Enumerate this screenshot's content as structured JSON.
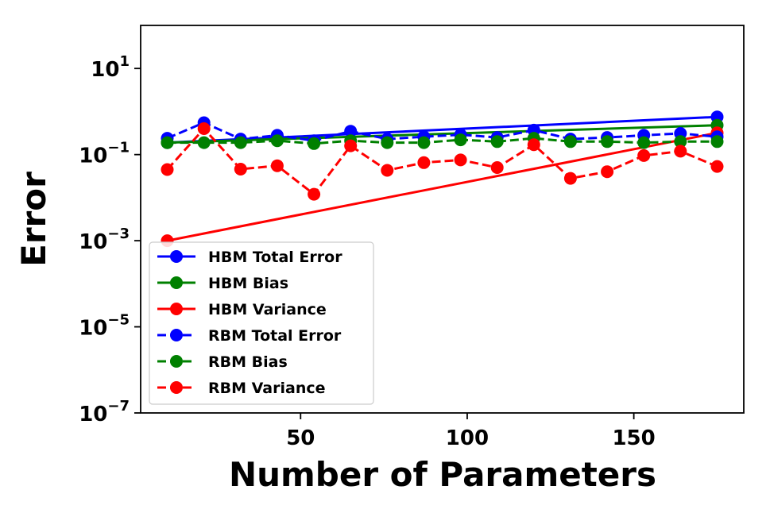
{
  "chart_data": {
    "type": "line",
    "xlabel": "Number of Parameters",
    "ylabel": "Error",
    "xlim": [
      2,
      183
    ],
    "ylim": [
      1e-07,
      100
    ],
    "yscale": "log",
    "xticks": [
      50,
      100,
      150
    ],
    "yticks": [
      {
        "base": "10",
        "exp": "1",
        "value": 10
      },
      {
        "base": "10",
        "exp": "−1",
        "value": 0.1
      },
      {
        "base": "10",
        "exp": "−3",
        "value": 0.001
      },
      {
        "base": "10",
        "exp": "−5",
        "value": 1e-05
      },
      {
        "base": "10",
        "exp": "−7",
        "value": 1e-07
      }
    ],
    "grid": false,
    "legend_position": "lower-left",
    "series": [
      {
        "name": "HBM Total Error",
        "color": "#0000ff",
        "linestyle": "solid",
        "x": [
          10,
          175
        ],
        "y": [
          0.19,
          0.75
        ]
      },
      {
        "name": "HBM Bias",
        "color": "#008000",
        "linestyle": "solid",
        "x": [
          10,
          175
        ],
        "y": [
          0.19,
          0.48
        ]
      },
      {
        "name": "HBM Variance",
        "color": "#ff0000",
        "linestyle": "solid",
        "x": [
          10,
          175
        ],
        "y": [
          0.001,
          0.32
        ]
      },
      {
        "name": "RBM Total Error",
        "color": "#0000ff",
        "linestyle": "dashed",
        "x": [
          10,
          21,
          32,
          43,
          54,
          65,
          76,
          87,
          98,
          109,
          120,
          131,
          142,
          153,
          164,
          175
        ],
        "y": [
          0.24,
          0.55,
          0.23,
          0.28,
          0.21,
          0.35,
          0.23,
          0.26,
          0.29,
          0.25,
          0.37,
          0.23,
          0.25,
          0.28,
          0.31,
          0.26
        ]
      },
      {
        "name": "RBM Bias",
        "color": "#008000",
        "linestyle": "dashed",
        "x": [
          10,
          21,
          32,
          43,
          54,
          65,
          76,
          87,
          98,
          109,
          120,
          131,
          142,
          153,
          164,
          175
        ],
        "y": [
          0.19,
          0.19,
          0.19,
          0.21,
          0.18,
          0.21,
          0.19,
          0.19,
          0.22,
          0.2,
          0.24,
          0.2,
          0.2,
          0.19,
          0.2,
          0.2
        ]
      },
      {
        "name": "RBM Variance",
        "color": "#ff0000",
        "linestyle": "dashed",
        "x": [
          10,
          21,
          32,
          43,
          54,
          65,
          76,
          87,
          98,
          109,
          120,
          131,
          142,
          153,
          164,
          175
        ],
        "y": [
          0.045,
          0.4,
          0.046,
          0.055,
          0.012,
          0.16,
          0.043,
          0.065,
          0.075,
          0.05,
          0.17,
          0.028,
          0.04,
          0.095,
          0.12,
          0.053
        ]
      }
    ]
  }
}
